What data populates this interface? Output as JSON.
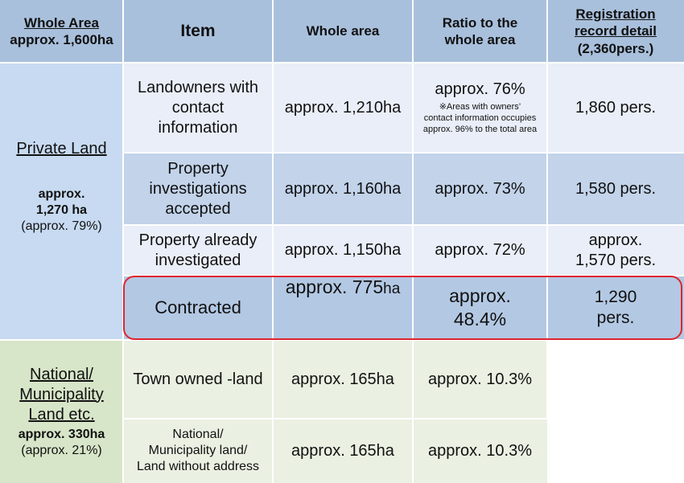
{
  "header": {
    "whole_area_title": "Whole Area",
    "whole_area_value": "approx. 1,600ha",
    "item": "Item",
    "whole_area_col": "Whole area",
    "ratio_line1": "Ratio to the",
    "ratio_line2": "whole area",
    "reg_line1": "Registration",
    "reg_line2": "record detail",
    "reg_line3": "(2,360pers.)"
  },
  "private": {
    "label": "Private Land",
    "area_line1": "approx.",
    "area_line2": "1,270 ha",
    "pct": "(approx. 79%)"
  },
  "national": {
    "label_line1": "National/",
    "label_line2": "Municipality",
    "label_line3": "Land etc.",
    "area": "approx. 330ha",
    "pct": "(approx. 21%)"
  },
  "rows": [
    {
      "item_lines": [
        "Landowners with",
        "contact",
        "information"
      ],
      "area": "approx. 1,210ha",
      "ratio": "approx. 76%",
      "ratio_note": [
        "※Areas with owners’",
        "contact information occupies",
        "approx. 96% to the total area"
      ],
      "reg": "1,860 pers."
    },
    {
      "item_lines": [
        "Property",
        "investigations",
        "accepted"
      ],
      "area": "approx. 1,160ha",
      "ratio": "approx. 73%",
      "reg": "1,580 pers."
    },
    {
      "item_lines": [
        "Property already",
        "investigated"
      ],
      "area": "approx. 1,150ha",
      "ratio": "approx. 72%",
      "reg_lines": [
        "approx.",
        "1,570 pers."
      ]
    },
    {
      "item": "Contracted",
      "area_main": "approx. 775",
      "area_unit": "ha",
      "ratio_lines": [
        "approx.",
        "48.4%"
      ],
      "reg_lines": [
        "1,290",
        "pers."
      ]
    },
    {
      "item": "Town owned -land",
      "area": "approx. 165ha",
      "ratio": "approx. 10.3%"
    },
    {
      "item_lines": [
        "National/",
        "Municipality land/",
        "Land without address"
      ],
      "area": "approx. 165ha",
      "ratio": "approx. 10.3%"
    }
  ],
  "colors": {
    "header": "#a9c0dc",
    "private_side": "#c7daf1",
    "national_side": "#d7e5c8",
    "highlight_border": "#e0242e"
  }
}
